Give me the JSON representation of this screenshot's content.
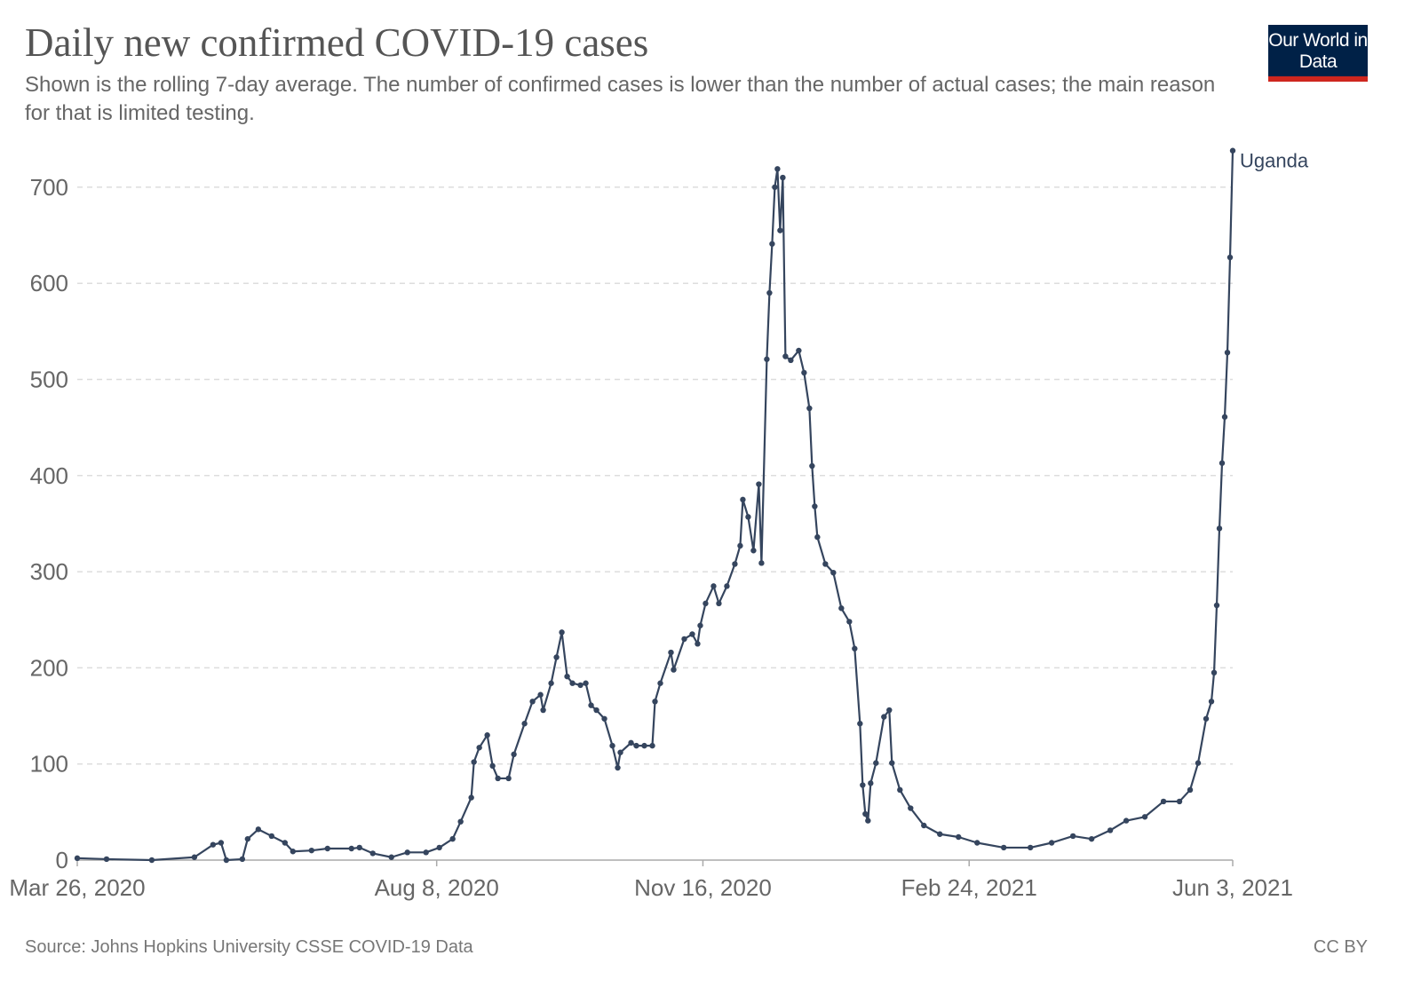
{
  "header": {
    "title": "Daily new confirmed COVID-19 cases",
    "subtitle": "Shown is the rolling 7-day average. The number of confirmed cases is lower than the number of actual cases; the main reason for that is limited testing.",
    "logo_text": "Our World in Data"
  },
  "footer": {
    "source": "Source: Johns Hopkins University CSSE COVID-19 Data",
    "license": "CC BY"
  },
  "chart_data": {
    "type": "line",
    "title": "Daily new confirmed COVID-19 cases",
    "xlabel": "",
    "ylabel": "",
    "xlim": [
      "2020-03-26",
      "2021-06-03"
    ],
    "ylim": [
      0,
      700
    ],
    "y_ticks": [
      "0",
      "100",
      "200",
      "300",
      "400",
      "500",
      "600",
      "700"
    ],
    "x_ticks": [
      {
        "date": "2020-03-26",
        "label": "Mar 26, 2020"
      },
      {
        "date": "2020-08-08",
        "label": "Aug 8, 2020"
      },
      {
        "date": "2020-11-16",
        "label": "Nov 16, 2020"
      },
      {
        "date": "2021-02-24",
        "label": "Feb 24, 2021"
      },
      {
        "date": "2021-06-03",
        "label": "Jun 3, 2021"
      }
    ],
    "grid": "horizontal dashed",
    "legend": "end-of-line label",
    "series": [
      {
        "name": "Uganda",
        "color": "#35455e",
        "points": [
          [
            "2020-03-26",
            2
          ],
          [
            "2020-04-06",
            1
          ],
          [
            "2020-04-23",
            0
          ],
          [
            "2020-05-09",
            3
          ],
          [
            "2020-05-16",
            16
          ],
          [
            "2020-05-19",
            18
          ],
          [
            "2020-05-21",
            0
          ],
          [
            "2020-05-27",
            1
          ],
          [
            "2020-05-29",
            22
          ],
          [
            "2020-06-02",
            32
          ],
          [
            "2020-06-07",
            25
          ],
          [
            "2020-06-12",
            18
          ],
          [
            "2020-06-15",
            9
          ],
          [
            "2020-06-22",
            10
          ],
          [
            "2020-06-28",
            12
          ],
          [
            "2020-07-07",
            12
          ],
          [
            "2020-07-10",
            13
          ],
          [
            "2020-07-15",
            7
          ],
          [
            "2020-07-22",
            3
          ],
          [
            "2020-07-28",
            8
          ],
          [
            "2020-08-04",
            8
          ],
          [
            "2020-08-09",
            13
          ],
          [
            "2020-08-14",
            22
          ],
          [
            "2020-08-17",
            40
          ],
          [
            "2020-08-21",
            65
          ],
          [
            "2020-08-22",
            102
          ],
          [
            "2020-08-24",
            117
          ],
          [
            "2020-08-27",
            130
          ],
          [
            "2020-08-29",
            98
          ],
          [
            "2020-08-31",
            85
          ],
          [
            "2020-09-04",
            85
          ],
          [
            "2020-09-06",
            110
          ],
          [
            "2020-09-10",
            142
          ],
          [
            "2020-09-13",
            165
          ],
          [
            "2020-09-16",
            172
          ],
          [
            "2020-09-17",
            156
          ],
          [
            "2020-09-20",
            184
          ],
          [
            "2020-09-22",
            211
          ],
          [
            "2020-09-24",
            237
          ],
          [
            "2020-09-26",
            191
          ],
          [
            "2020-09-28",
            184
          ],
          [
            "2020-10-01",
            182
          ],
          [
            "2020-10-03",
            184
          ],
          [
            "2020-10-05",
            161
          ],
          [
            "2020-10-07",
            156
          ],
          [
            "2020-10-10",
            147
          ],
          [
            "2020-10-13",
            119
          ],
          [
            "2020-10-15",
            96
          ],
          [
            "2020-10-16",
            112
          ],
          [
            "2020-10-20",
            122
          ],
          [
            "2020-10-22",
            119
          ],
          [
            "2020-10-25",
            119
          ],
          [
            "2020-10-28",
            119
          ],
          [
            "2020-10-29",
            165
          ],
          [
            "2020-10-31",
            184
          ],
          [
            "2020-11-04",
            216
          ],
          [
            "2020-11-05",
            198
          ],
          [
            "2020-11-09",
            230
          ],
          [
            "2020-11-12",
            235
          ],
          [
            "2020-11-14",
            225
          ],
          [
            "2020-11-15",
            244
          ],
          [
            "2020-11-17",
            267
          ],
          [
            "2020-11-20",
            285
          ],
          [
            "2020-11-22",
            267
          ],
          [
            "2020-11-25",
            285
          ],
          [
            "2020-11-28",
            308
          ],
          [
            "2020-11-30",
            327
          ],
          [
            "2020-12-01",
            375
          ],
          [
            "2020-12-03",
            357
          ],
          [
            "2020-12-05",
            322
          ],
          [
            "2020-12-07",
            391
          ],
          [
            "2020-12-08",
            309
          ],
          [
            "2020-12-10",
            521
          ],
          [
            "2020-12-11",
            590
          ],
          [
            "2020-12-12",
            641
          ],
          [
            "2020-12-13",
            700
          ],
          [
            "2020-12-14",
            719
          ],
          [
            "2020-12-15",
            655
          ],
          [
            "2020-12-16",
            710
          ],
          [
            "2020-12-17",
            524
          ],
          [
            "2020-12-19",
            520
          ],
          [
            "2020-12-22",
            530
          ],
          [
            "2020-12-24",
            507
          ],
          [
            "2020-12-26",
            470
          ],
          [
            "2020-12-27",
            410
          ],
          [
            "2020-12-28",
            368
          ],
          [
            "2020-12-29",
            336
          ],
          [
            "2021-01-01",
            308
          ],
          [
            "2021-01-04",
            299
          ],
          [
            "2021-01-07",
            262
          ],
          [
            "2021-01-10",
            248
          ],
          [
            "2021-01-12",
            220
          ],
          [
            "2021-01-14",
            142
          ],
          [
            "2021-01-15",
            78
          ],
          [
            "2021-01-16",
            48
          ],
          [
            "2021-01-17",
            41
          ],
          [
            "2021-01-18",
            80
          ],
          [
            "2021-01-20",
            101
          ],
          [
            "2021-01-23",
            149
          ],
          [
            "2021-01-25",
            156
          ],
          [
            "2021-01-26",
            101
          ],
          [
            "2021-01-29",
            73
          ],
          [
            "2021-02-02",
            54
          ],
          [
            "2021-02-07",
            36
          ],
          [
            "2021-02-13",
            27
          ],
          [
            "2021-02-20",
            24
          ],
          [
            "2021-02-27",
            18
          ],
          [
            "2021-03-09",
            13
          ],
          [
            "2021-03-19",
            13
          ],
          [
            "2021-03-27",
            18
          ],
          [
            "2021-04-04",
            25
          ],
          [
            "2021-04-11",
            22
          ],
          [
            "2021-04-18",
            31
          ],
          [
            "2021-04-24",
            41
          ],
          [
            "2021-05-01",
            45
          ],
          [
            "2021-05-08",
            61
          ],
          [
            "2021-05-14",
            61
          ],
          [
            "2021-05-18",
            73
          ],
          [
            "2021-05-21",
            101
          ],
          [
            "2021-05-24",
            147
          ],
          [
            "2021-05-26",
            165
          ],
          [
            "2021-05-27",
            195
          ],
          [
            "2021-05-28",
            265
          ],
          [
            "2021-05-29",
            345
          ],
          [
            "2021-05-30",
            413
          ],
          [
            "2021-05-31",
            461
          ],
          [
            "2021-06-01",
            528
          ],
          [
            "2021-06-02",
            627
          ],
          [
            "2021-06-03",
            738
          ]
        ]
      }
    ]
  }
}
